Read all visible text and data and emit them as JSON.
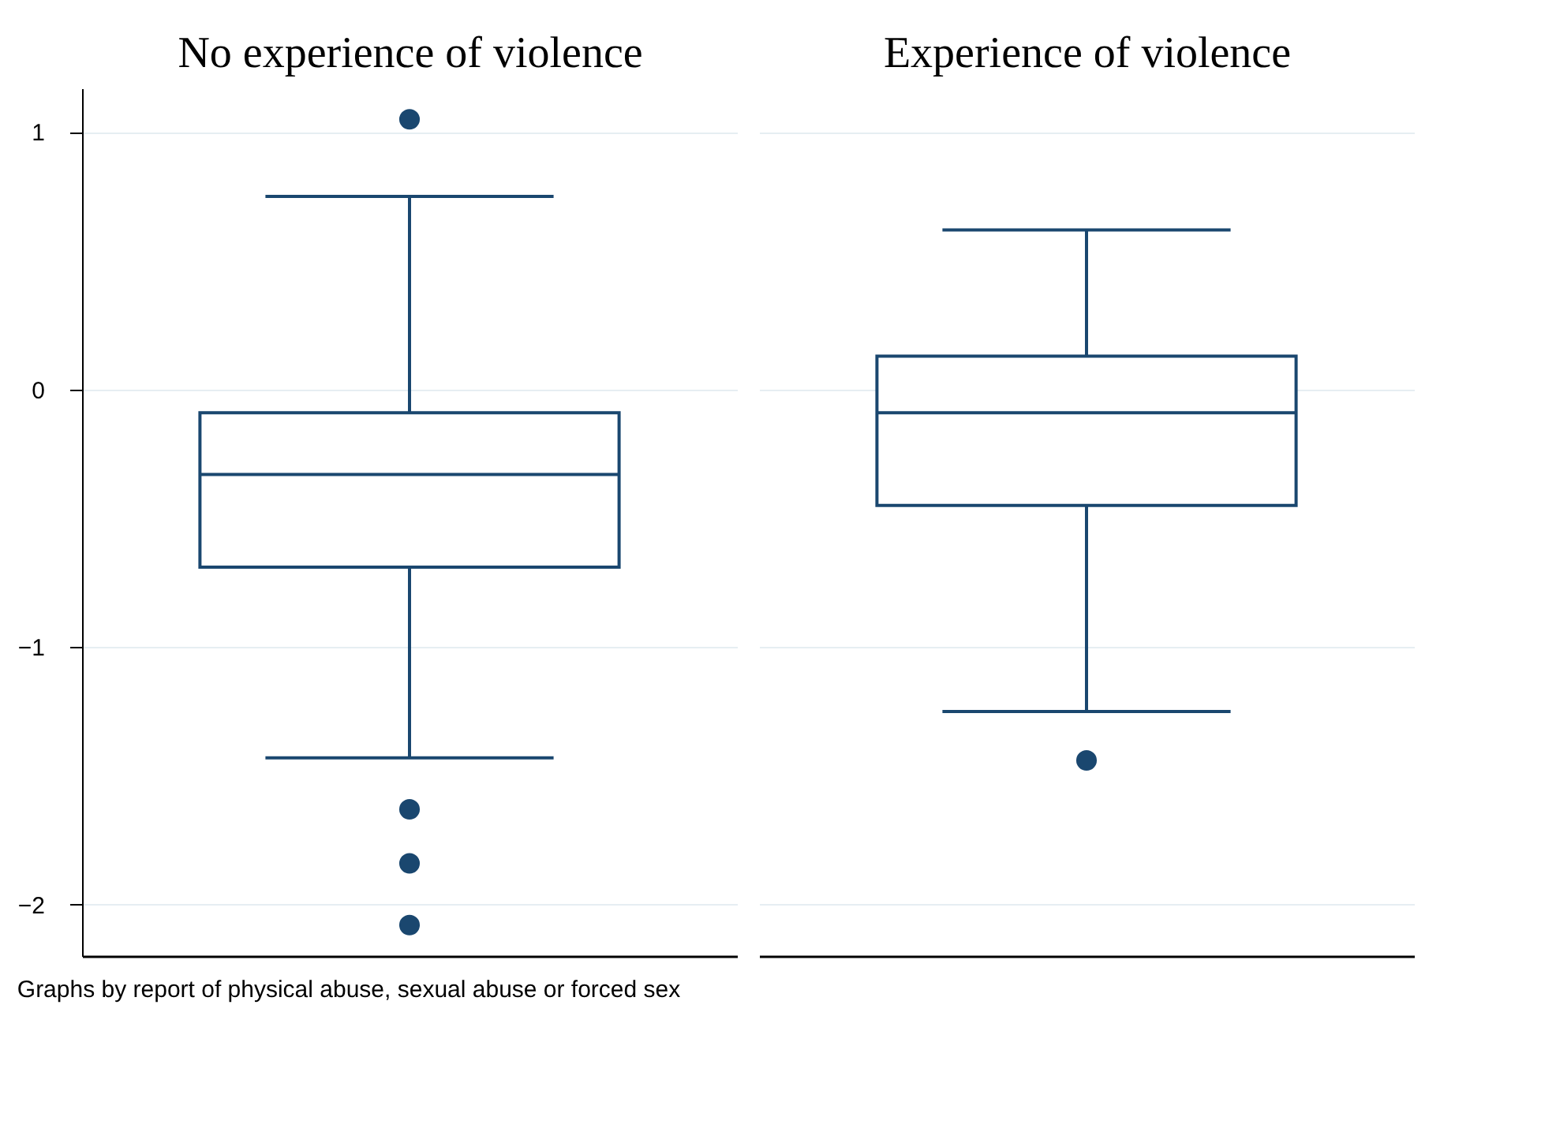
{
  "chart_data": {
    "type": "box",
    "categories": [
      "No experience of violence",
      "Experience of violence"
    ],
    "color": "#1a476f",
    "ylim": [
      -2.2,
      1.17
    ],
    "yticks": [
      -2,
      -1,
      0,
      1
    ],
    "grid": "y",
    "annotations": [
      "Graphs by report of physical abuse, sexual abuse or forced sex"
    ],
    "boxes": [
      {
        "low": -1.43,
        "q1": -0.69,
        "median": -0.33,
        "q3": -0.09,
        "high": 0.75,
        "outliers": [
          1.05,
          -1.63,
          -1.84,
          -2.08
        ]
      },
      {
        "low": -1.25,
        "q1": -0.45,
        "median": -0.09,
        "q3": 0.13,
        "high": 0.62,
        "outliers": [
          -1.44
        ]
      }
    ]
  }
}
